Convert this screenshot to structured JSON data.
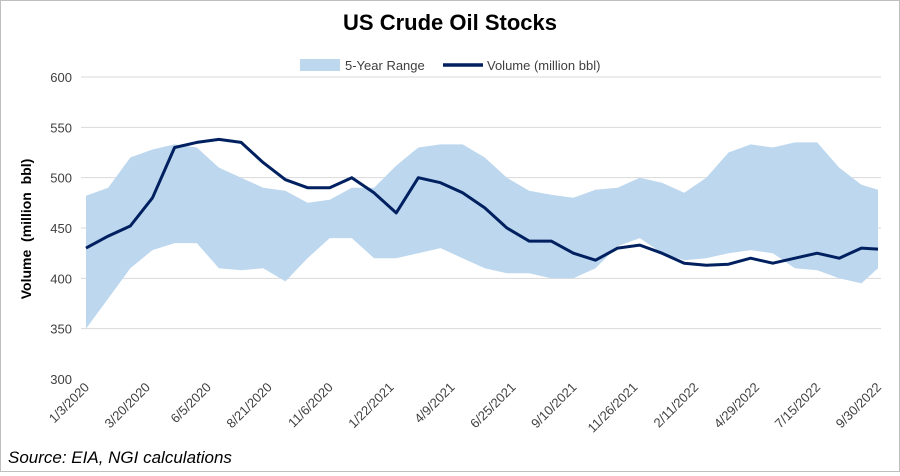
{
  "chart_data": {
    "type": "area",
    "title": "US Crude Oil Stocks",
    "ylabel": "Volume  (million  bbl)",
    "xlabel": "",
    "ylim": [
      300,
      600
    ],
    "yticks": [
      300,
      350,
      400,
      450,
      500,
      550,
      600
    ],
    "xticks": [
      "1/3/2020",
      "3/20/2020",
      "6/5/2020",
      "8/21/2020",
      "11/6/2020",
      "1/22/2021",
      "4/9/2021",
      "6/25/2021",
      "9/10/2021",
      "11/26/2021",
      "2/11/2022",
      "4/29/2022",
      "7/15/2022",
      "9/30/2022"
    ],
    "grid": "horizontal",
    "legend_position": "top",
    "x": [
      "1/3/2020",
      "1/31/2020",
      "2/28/2020",
      "3/27/2020",
      "4/24/2020",
      "5/22/2020",
      "6/19/2020",
      "7/17/2020",
      "8/14/2020",
      "9/11/2020",
      "10/9/2020",
      "11/6/2020",
      "12/4/2020",
      "1/1/2021",
      "1/29/2021",
      "2/26/2021",
      "3/26/2021",
      "4/23/2021",
      "5/21/2021",
      "6/18/2021",
      "7/16/2021",
      "8/13/2021",
      "9/10/2021",
      "10/8/2021",
      "11/5/2021",
      "12/3/2021",
      "12/31/2021",
      "1/28/2022",
      "2/25/2022",
      "3/25/2022",
      "4/22/2022",
      "5/20/2022",
      "6/17/2022",
      "7/15/2022",
      "8/12/2022",
      "9/9/2022",
      "9/30/2022"
    ],
    "series": [
      {
        "name": "5-Year Range",
        "kind": "range",
        "color": "#bdd7ee",
        "low": [
          350,
          380,
          410,
          428,
          435,
          435,
          410,
          408,
          410,
          397,
          420,
          440,
          440,
          420,
          420,
          425,
          430,
          420,
          410,
          405,
          405,
          400,
          400,
          410,
          432,
          440,
          425,
          418,
          420,
          425,
          428,
          425,
          410,
          408,
          400,
          395,
          410
        ],
        "high": [
          482,
          490,
          520,
          528,
          533,
          530,
          510,
          500,
          490,
          487,
          475,
          478,
          490,
          490,
          512,
          530,
          533,
          533,
          520,
          500,
          487,
          483,
          480,
          488,
          490,
          500,
          495,
          485,
          500,
          525,
          533,
          530,
          535,
          535,
          510,
          493,
          488
        ]
      },
      {
        "name": "Volume (million bbl)",
        "kind": "line",
        "color": "#002060",
        "values": [
          430,
          442,
          452,
          480,
          530,
          535,
          538,
          535,
          515,
          498,
          490,
          490,
          500,
          485,
          465,
          500,
          495,
          485,
          470,
          450,
          437,
          437,
          425,
          418,
          430,
          433,
          425,
          415,
          413,
          414,
          420,
          415,
          420,
          425,
          420,
          430,
          429
        ]
      }
    ]
  },
  "source": "Source: EIA, NGI calculations"
}
